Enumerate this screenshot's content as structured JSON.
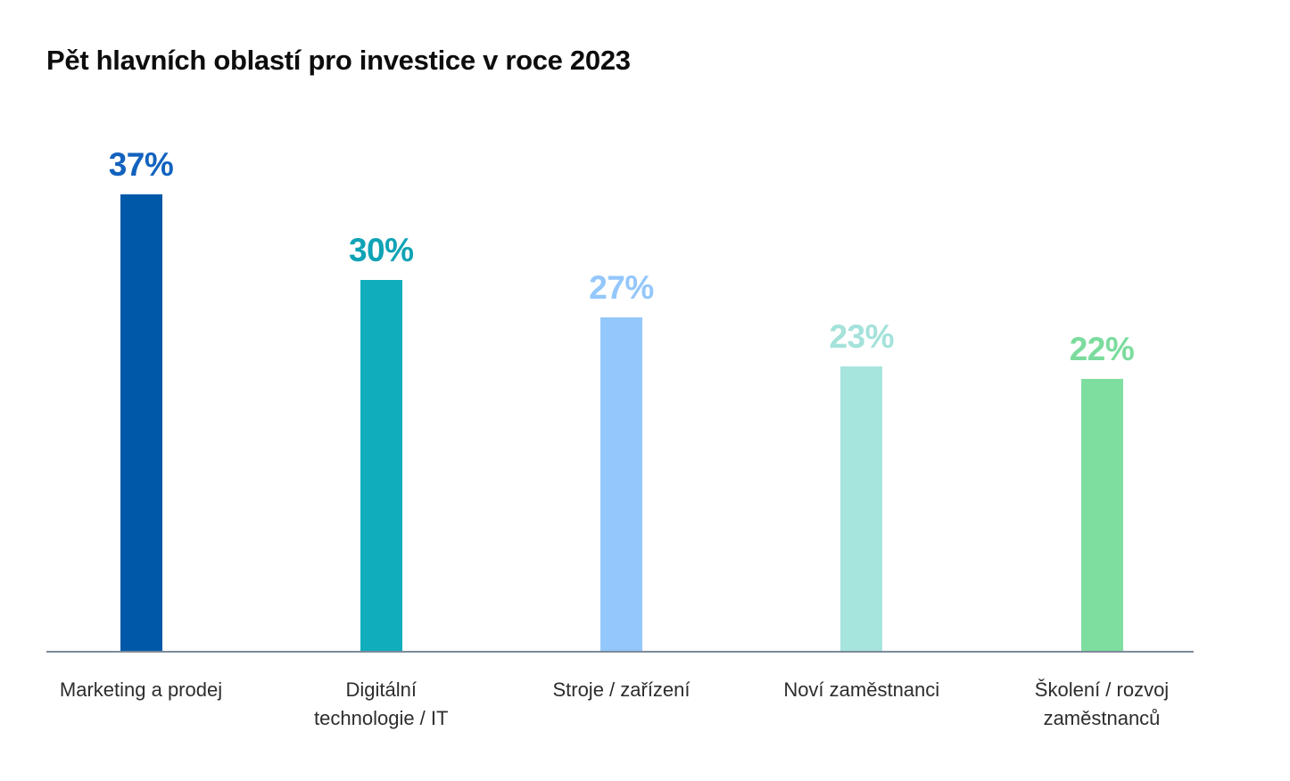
{
  "chart_data": {
    "type": "bar",
    "title": "Pět hlavních oblastí pro investice v roce 2023",
    "categories": [
      "Marketing a prodej",
      "Digitální technologie / IT",
      "Stroje / zařízení",
      "Noví zaměstnanci",
      "Školení / rozvoj zaměstnanců"
    ],
    "category_lines": [
      [
        "Marketing a prodej"
      ],
      [
        "Digitální",
        "technologie / IT"
      ],
      [
        "Stroje / zařízení"
      ],
      [
        "Noví zaměstnanci"
      ],
      [
        "Školení / rozvoj",
        "zaměstnanců"
      ]
    ],
    "values": [
      37,
      30,
      27,
      23,
      22
    ],
    "value_labels": [
      "37%",
      "30%",
      "27%",
      "23%",
      "22%"
    ],
    "unit": "%",
    "bar_colors": [
      "#0059a8",
      "#10aebc",
      "#94c7fb",
      "#a6e5dd",
      "#7ede9f"
    ],
    "value_label_colors": [
      "#1263be",
      "#0fa3b5",
      "#94c7fb",
      "#a4e2da",
      "#7bdc9d"
    ],
    "axis_line_color": "#7c8b99",
    "xlabel": "",
    "ylabel": "",
    "ylim": [
      0,
      40
    ],
    "grid": false,
    "legend": false
  }
}
